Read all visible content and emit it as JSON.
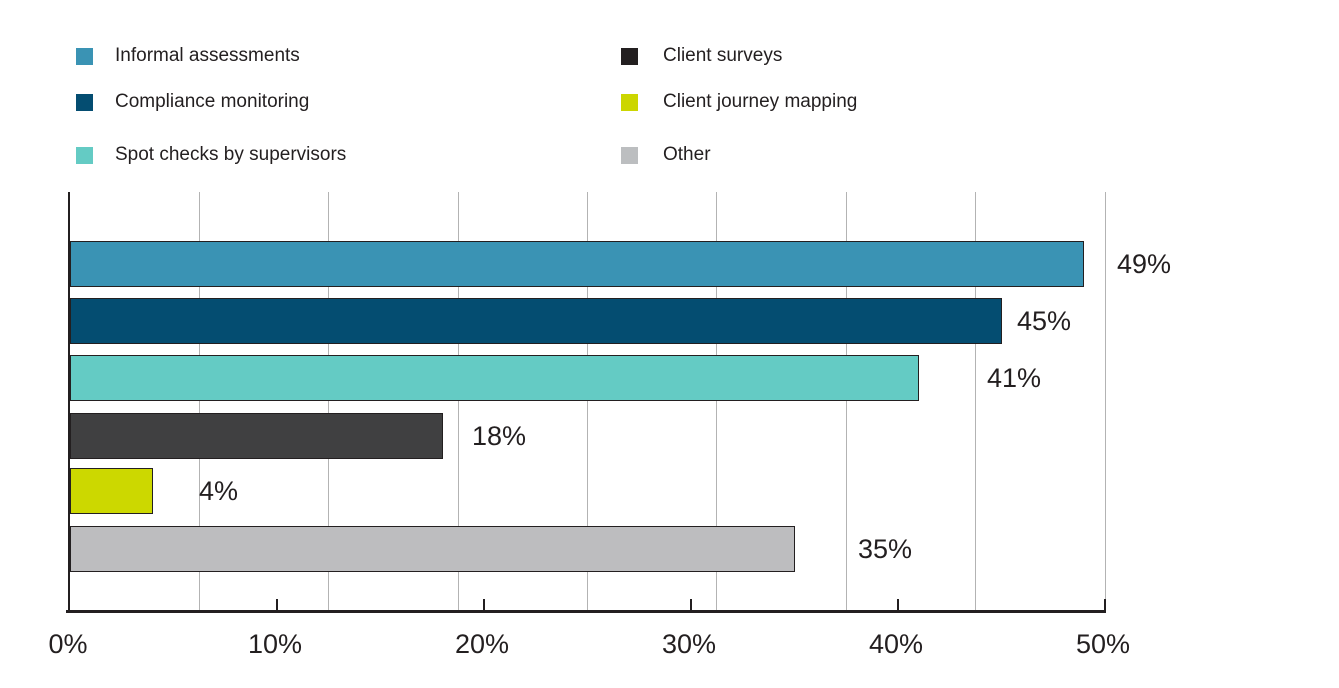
{
  "colors": {
    "text": "#231f20",
    "axis": "#231f20",
    "gridline": "#b3b3b3",
    "bar_border": "#231f20"
  },
  "chart_data": {
    "type": "bar",
    "orientation": "horizontal",
    "title": "",
    "xlabel": "",
    "ylabel": "",
    "categories": [
      "Informal assessments",
      "Compliance monitoring",
      "Spot checks by supervisors",
      "Client surveys",
      "Client journey mapping",
      "Other"
    ],
    "values": [
      49,
      45,
      41,
      18,
      4,
      35
    ],
    "data_labels": [
      "49%",
      "45%",
      "41%",
      "18%",
      "4%",
      "35%"
    ],
    "bar_colors": [
      "#3a93b4",
      "#044d71",
      "#64cbc4",
      "#404041",
      "#ccd800",
      "#bdbdbf"
    ],
    "legend_swatch_colors": [
      "#3a93b4",
      "#044d71",
      "#64cbc4",
      "#231f20",
      "#ccd600",
      "#bcbec0"
    ],
    "legend_position": "top",
    "grid": "vertical-only",
    "gridline_interval_pct": 6.25,
    "tick_interval_pct": 10,
    "x_axis": {
      "min": 0,
      "max": 50,
      "tick_labels": [
        "0%",
        "10%",
        "20%",
        "30%",
        "40%",
        "50%"
      ]
    }
  }
}
